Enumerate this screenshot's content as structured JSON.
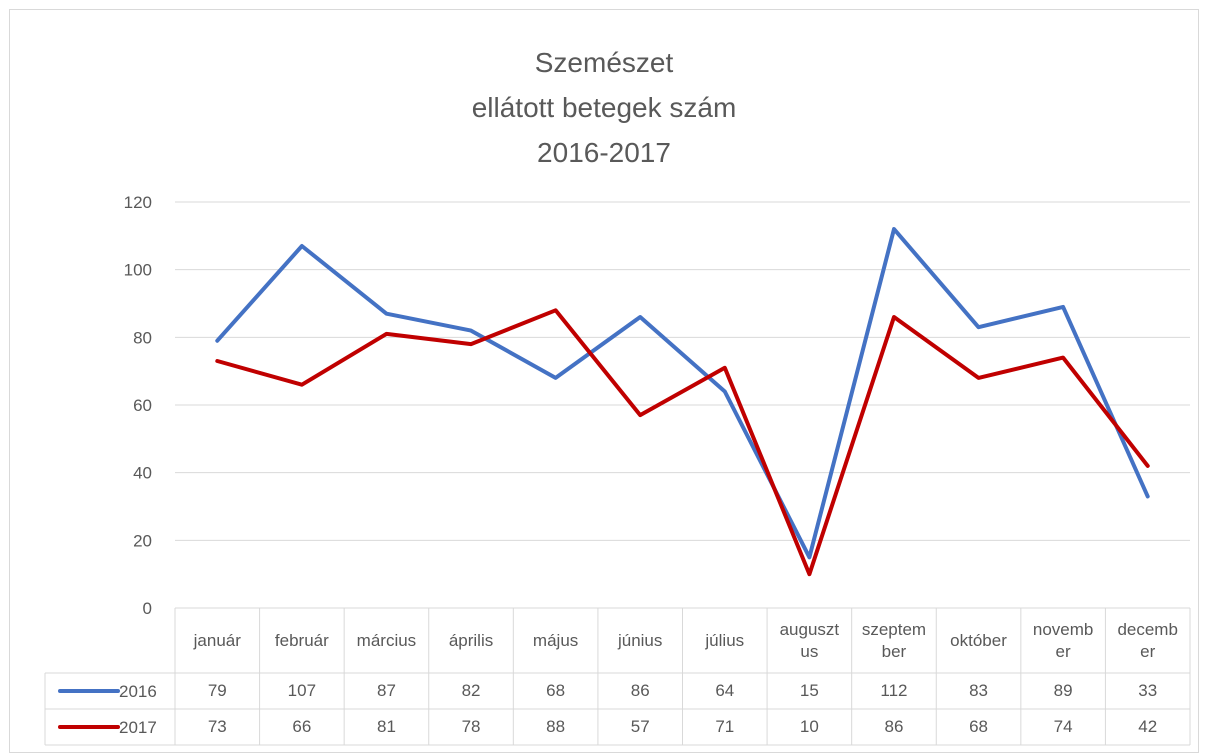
{
  "chart_data": {
    "type": "line",
    "title": [
      "Szemészet",
      "ellátott betegek szám",
      "2016-2017"
    ],
    "categories": [
      "január",
      "február",
      "március",
      "április",
      "május",
      "június",
      "július",
      "augusztus",
      "szeptember",
      "október",
      "november",
      "december"
    ],
    "series": [
      {
        "name": "2016",
        "color": "#4472c4",
        "values": [
          79,
          107,
          87,
          82,
          68,
          86,
          64,
          15,
          112,
          83,
          89,
          33
        ]
      },
      {
        "name": "2017",
        "color": "#c00000",
        "values": [
          73,
          66,
          81,
          78,
          88,
          57,
          71,
          10,
          86,
          68,
          74,
          42
        ]
      }
    ],
    "ylim": [
      0,
      120
    ],
    "yticks": [
      0,
      20,
      40,
      60,
      80,
      100,
      120
    ],
    "grid": true
  }
}
